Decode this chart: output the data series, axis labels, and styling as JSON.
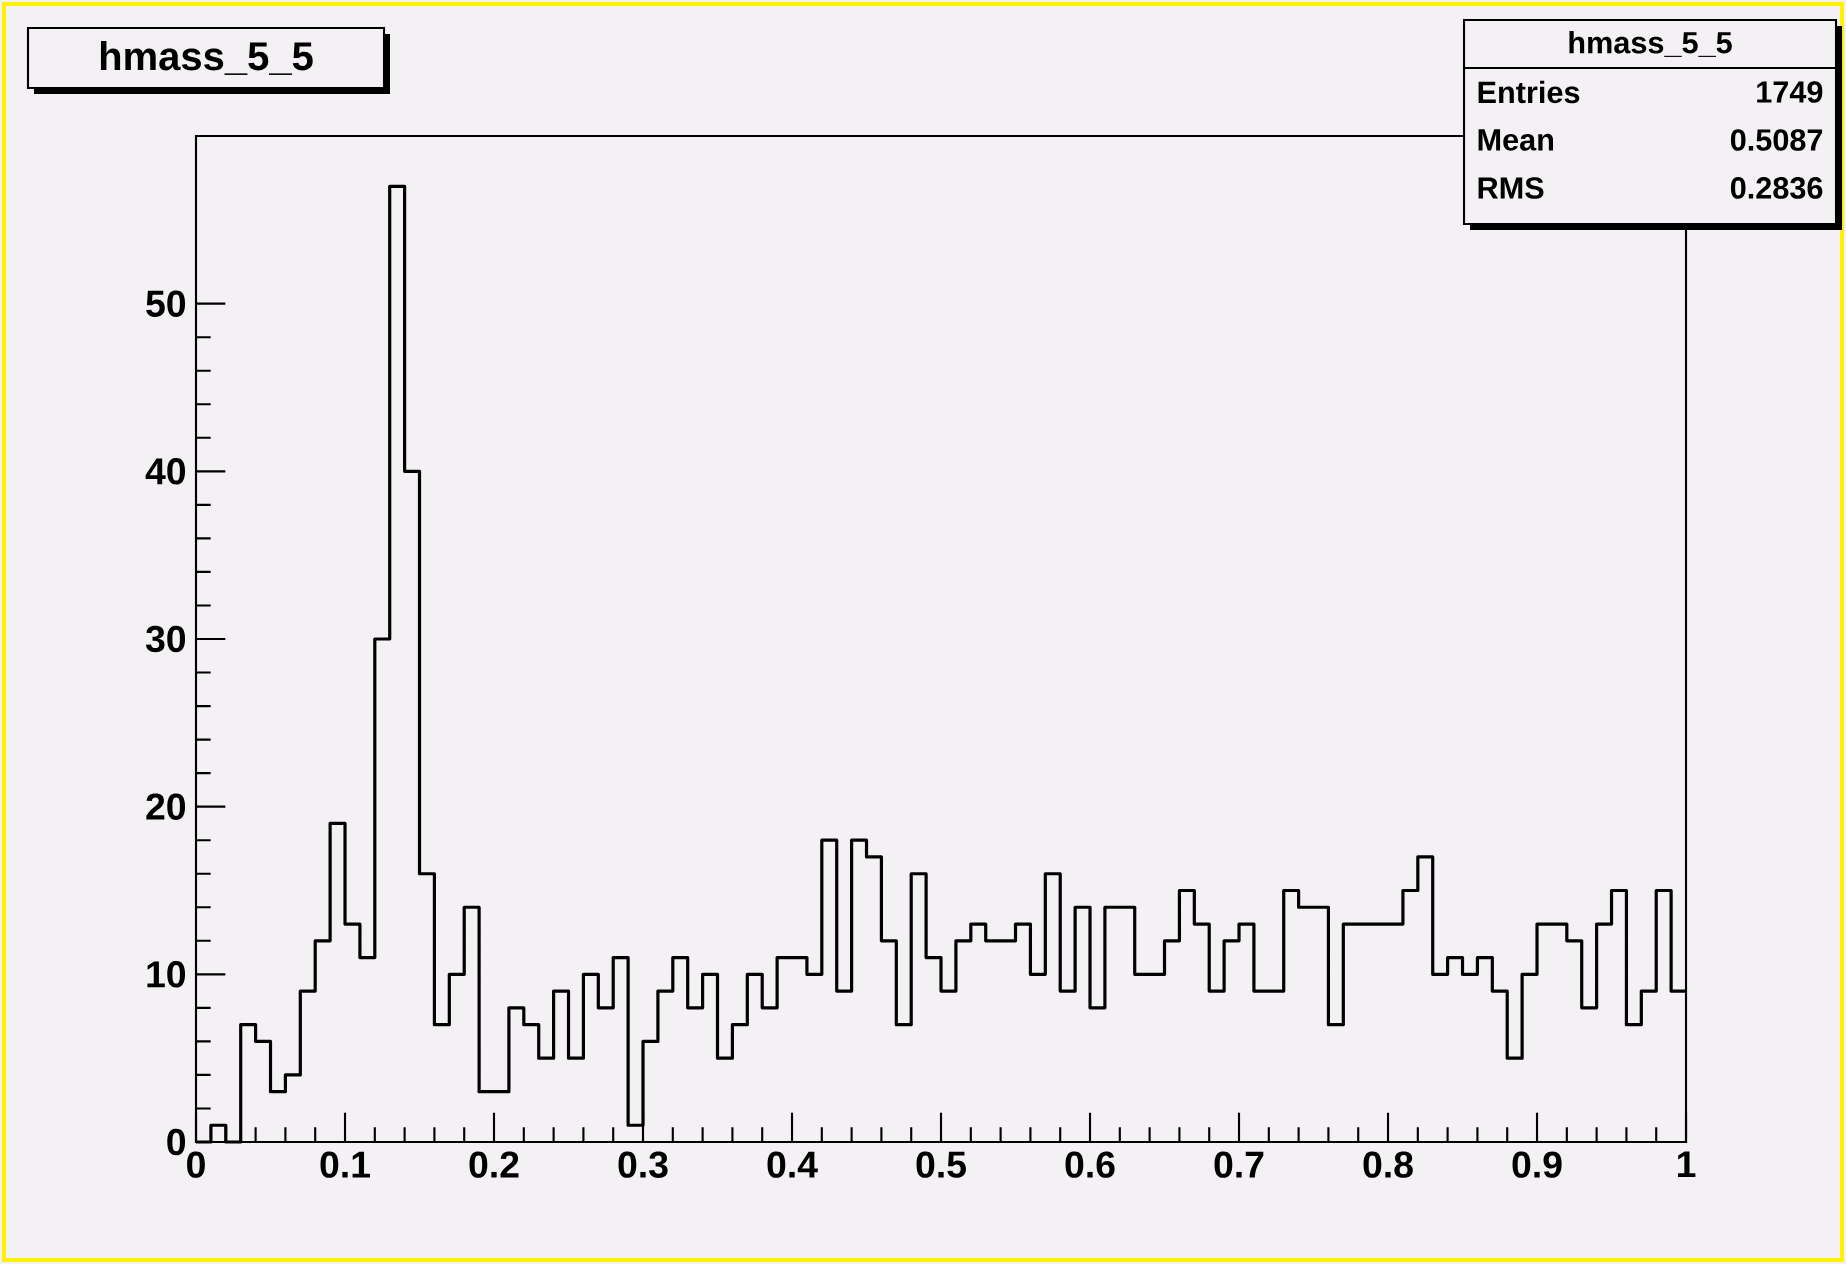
{
  "chart_data": {
    "type": "histogram",
    "title": "hmass_5_5",
    "bins": [
      0,
      0.01,
      0.02,
      0.03,
      0.04,
      0.05,
      0.06,
      0.07,
      0.08,
      0.09,
      0.1,
      0.11,
      0.12,
      0.13,
      0.14,
      0.15,
      0.16,
      0.17,
      0.18,
      0.19,
      0.2,
      0.21,
      0.22,
      0.23,
      0.24,
      0.25,
      0.26,
      0.27,
      0.28,
      0.29,
      0.3,
      0.31,
      0.32,
      0.33,
      0.34,
      0.35,
      0.36,
      0.37,
      0.38,
      0.39,
      0.4,
      0.41,
      0.42,
      0.43,
      0.44,
      0.45,
      0.46,
      0.47,
      0.48,
      0.49,
      0.5,
      0.51,
      0.52,
      0.53,
      0.54,
      0.55,
      0.56,
      0.57,
      0.58,
      0.59,
      0.6,
      0.61,
      0.62,
      0.63,
      0.64,
      0.65,
      0.66,
      0.67,
      0.68,
      0.69,
      0.7,
      0.71,
      0.72,
      0.73,
      0.74,
      0.75,
      0.76,
      0.77,
      0.78,
      0.79,
      0.8,
      0.81,
      0.82,
      0.83,
      0.84,
      0.85,
      0.86,
      0.87,
      0.88,
      0.89,
      0.9,
      0.91,
      0.92,
      0.93,
      0.94,
      0.95,
      0.96,
      0.97,
      0.98,
      0.99,
      1
    ],
    "values": [
      0,
      1,
      0,
      7,
      6,
      3,
      4,
      9,
      12,
      19,
      13,
      11,
      30,
      57,
      40,
      16,
      7,
      10,
      14,
      3,
      3,
      8,
      7,
      5,
      9,
      5,
      10,
      8,
      11,
      1,
      6,
      9,
      11,
      8,
      10,
      5,
      7,
      10,
      8,
      11,
      11,
      10,
      18,
      9,
      18,
      17,
      12,
      7,
      16,
      11,
      9,
      12,
      13,
      12,
      12,
      13,
      10,
      16,
      9,
      14,
      8,
      14,
      14,
      10,
      10,
      12,
      15,
      13,
      9,
      12,
      13,
      9,
      9,
      15,
      14,
      14,
      7,
      13,
      13,
      13,
      13,
      15,
      17,
      10,
      11,
      10,
      11,
      9,
      5,
      10,
      13,
      13,
      12,
      8,
      13,
      15,
      7,
      9,
      15,
      9
    ],
    "color": "#000000",
    "xlim": [
      0,
      1
    ],
    "ylim": [
      0,
      60
    ],
    "xticks": [
      0,
      0.1,
      0.2,
      0.3,
      0.4,
      0.5,
      0.6,
      0.7,
      0.8,
      0.9,
      1
    ],
    "yticks": [
      0,
      10,
      20,
      30,
      40,
      50
    ],
    "annotations": [
      "hmass_5_5",
      "Entries",
      "1749",
      "Mean",
      "0.5087",
      "RMS",
      "0.2836"
    ]
  }
}
